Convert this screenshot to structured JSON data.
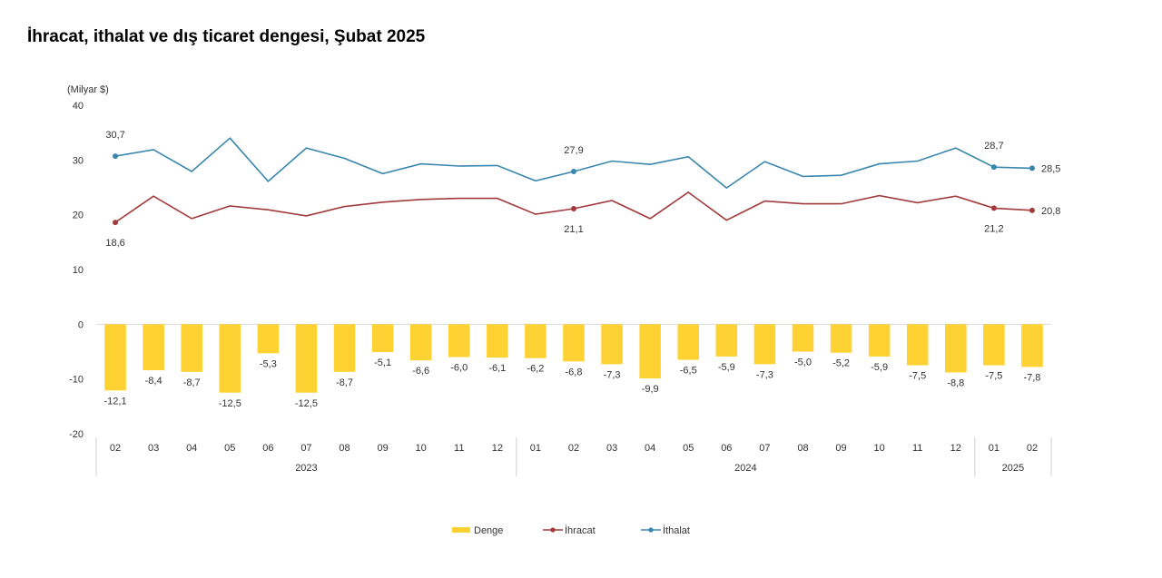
{
  "chart_data": {
    "type": "bar+line",
    "title": "İhracat, ithalat ve dış ticaret dengesi, Şubat 2025",
    "ylabel": "(Milyar $)",
    "ylim": [
      -20,
      40
    ],
    "yticks": [
      "40",
      "30",
      "20",
      "10",
      "0",
      "-10",
      "-20"
    ],
    "categories": [
      "02",
      "03",
      "04",
      "05",
      "06",
      "07",
      "08",
      "09",
      "10",
      "11",
      "12",
      "01",
      "02",
      "03",
      "04",
      "05",
      "06",
      "07",
      "08",
      "09",
      "10",
      "11",
      "12",
      "01",
      "02"
    ],
    "year_groups": [
      {
        "label": "2023",
        "count": 11
      },
      {
        "label": "2024",
        "count": 12
      },
      {
        "label": "2025",
        "count": 2
      }
    ],
    "series": [
      {
        "name": "Denge",
        "kind": "bar",
        "color": "#FFD234",
        "values": [
          -12.1,
          -8.4,
          -8.7,
          -12.5,
          -5.3,
          -12.5,
          -8.7,
          -5.1,
          -6.6,
          -6.0,
          -6.1,
          -6.2,
          -6.8,
          -7.3,
          -9.9,
          -6.5,
          -5.9,
          -7.3,
          -5.0,
          -5.2,
          -5.9,
          -7.5,
          -8.8,
          -7.5,
          -7.8
        ],
        "labels": [
          "-12,1",
          "-8,4",
          "-8,7",
          "-12,5",
          "-5,3",
          "-12,5",
          "-8,7",
          "-5,1",
          "-6,6",
          "-6,0",
          "-6,1",
          "-6,2",
          "-6,8",
          "-7,3",
          "-9,9",
          "-6,5",
          "-5,9",
          "-7,3",
          "-5,0",
          "-5,2",
          "-5,9",
          "-7,5",
          "-8,8",
          "-7,5",
          "-7,8"
        ]
      },
      {
        "name": "İhracat",
        "kind": "line",
        "color": "#A23A3C",
        "values": [
          18.6,
          23.4,
          19.3,
          21.6,
          20.9,
          19.8,
          21.5,
          22.3,
          22.8,
          23.0,
          23.0,
          20.1,
          21.1,
          22.6,
          19.3,
          24.1,
          19.0,
          22.5,
          22.0,
          22.0,
          23.5,
          22.2,
          23.4,
          21.2,
          20.8
        ],
        "labels": [
          {
            "i": 0,
            "text": "18,6",
            "pos": "below"
          },
          {
            "i": 12,
            "text": "21,1",
            "pos": "below"
          },
          {
            "i": 23,
            "text": "21,2",
            "pos": "below"
          },
          {
            "i": 24,
            "text": "20,8",
            "pos": "right"
          }
        ],
        "markers": [
          0,
          12,
          23,
          24
        ]
      },
      {
        "name": "İthalat",
        "kind": "line",
        "color": "#3A87AD",
        "values": [
          30.7,
          31.9,
          27.9,
          34.0,
          26.1,
          32.2,
          30.3,
          27.5,
          29.3,
          28.9,
          29.0,
          26.2,
          27.9,
          29.8,
          29.2,
          30.6,
          24.9,
          29.7,
          27.0,
          27.2,
          29.3,
          29.8,
          32.2,
          28.7,
          28.5
        ],
        "labels": [
          {
            "i": 0,
            "text": "30,7",
            "pos": "above"
          },
          {
            "i": 12,
            "text": "27,9",
            "pos": "above"
          },
          {
            "i": 23,
            "text": "28,7",
            "pos": "above"
          },
          {
            "i": 24,
            "text": "28,5",
            "pos": "right"
          }
        ],
        "markers": [
          0,
          12,
          23,
          24
        ]
      }
    ],
    "legend": [
      "Denge",
      "İhracat",
      "İthalat"
    ],
    "legend_position": "bottom-center"
  }
}
